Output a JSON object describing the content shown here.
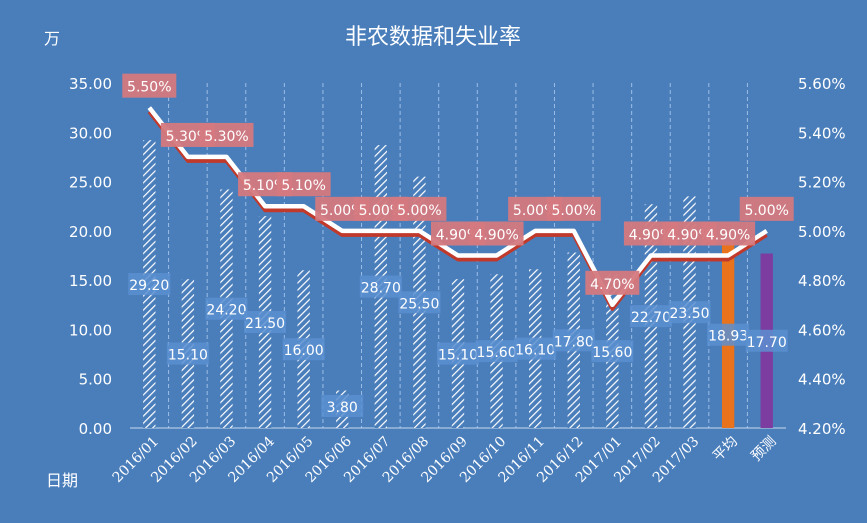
{
  "chart_data": {
    "type": "bar",
    "title": "非农数据和失业率",
    "ylabel_left": "万",
    "xlabel": "日期",
    "ylim_left": [
      0,
      35
    ],
    "yticks_left": [
      "0.00",
      "5.00",
      "10.00",
      "15.00",
      "20.00",
      "25.00",
      "30.00",
      "35.00"
    ],
    "ylim_right": [
      4.2,
      5.6
    ],
    "yticks_right": [
      "4.20%",
      "4.40%",
      "4.60%",
      "4.80%",
      "5.00%",
      "5.20%",
      "5.40%",
      "5.60%"
    ],
    "categories": [
      "2016/01",
      "2016/02",
      "2016/03",
      "2016/04",
      "2016/05",
      "2016/06",
      "2016/07",
      "2016/08",
      "2016/09",
      "2016/10",
      "2016/11",
      "2016/12",
      "2017/01",
      "2017/02",
      "2017/03",
      "平均",
      "预测"
    ],
    "series": [
      {
        "kind": "bar",
        "values": [
          29.2,
          15.1,
          24.2,
          21.5,
          16.0,
          3.8,
          28.7,
          25.5,
          15.1,
          15.6,
          16.1,
          17.8,
          15.6,
          22.7,
          23.5,
          18.93,
          17.7
        ],
        "labels": [
          "29.20",
          "15.10",
          "24.20",
          "21.50",
          "16.00",
          "3.80",
          "28.70",
          "25.50",
          "15.10",
          "15.60",
          "16.10",
          "17.80",
          "15.60",
          "22.70",
          "23.50",
          "18.93",
          "17.70"
        ],
        "special_colors": {
          "15": "#e8731c",
          "16": "#7d3ca0"
        }
      },
      {
        "kind": "line",
        "values": [
          5.5,
          5.3,
          5.3,
          5.1,
          5.1,
          5.0,
          5.0,
          5.0,
          4.9,
          4.9,
          5.0,
          5.0,
          4.7,
          4.9,
          4.9,
          4.9,
          5.0
        ],
        "labels": [
          "5.50%",
          "5.30%",
          "5.30%",
          "5.10%",
          "5.10%",
          "5.00%",
          "5.00%",
          "5.00%",
          "4.90%",
          "4.90%",
          "5.00%",
          "5.00%",
          "4.70%",
          "4.90%",
          "4.90%",
          "4.90%",
          "5.00%"
        ]
      }
    ],
    "grid": true,
    "colors": {
      "background": "#4a7ebb",
      "line": "#ffffff",
      "line_shadow": "#c0392b",
      "line_label_bg": "#d4797e",
      "bar_label_bg": "#5b8fd0"
    }
  }
}
